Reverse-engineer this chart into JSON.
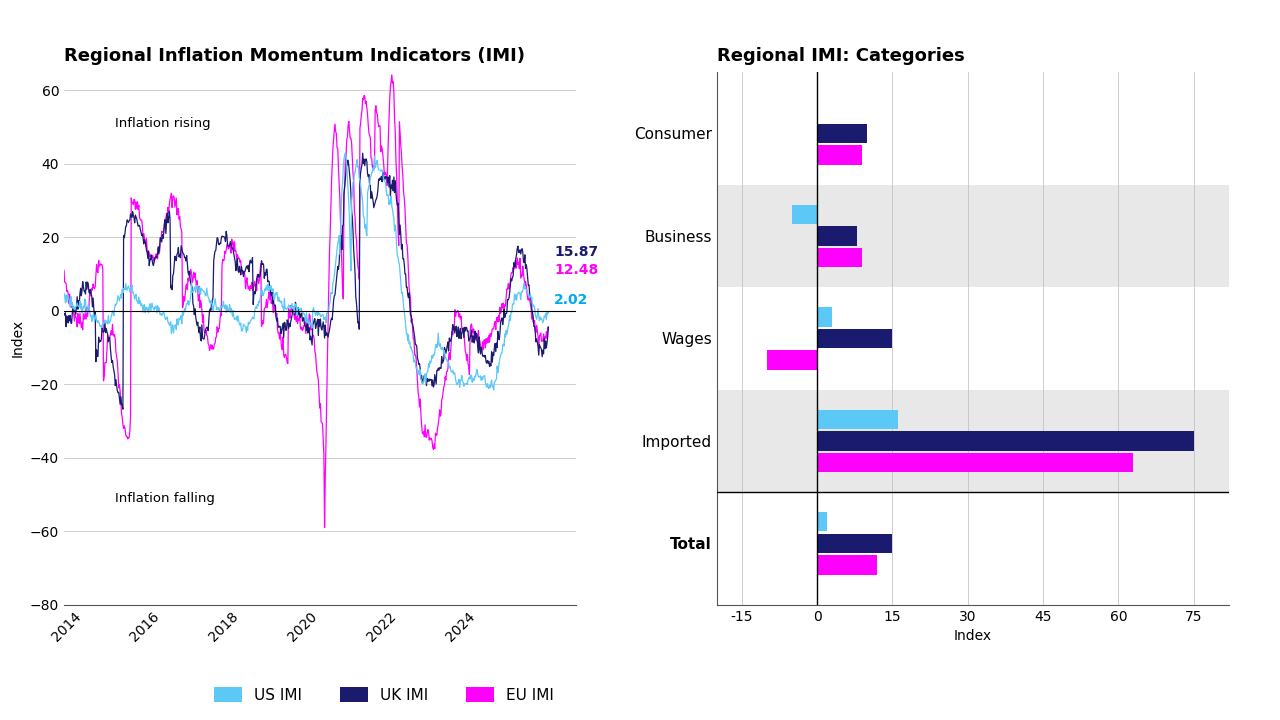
{
  "left_title": "Regional Inflation Momentum Indicators (IMI)",
  "right_title": "Regional IMI: Categories",
  "left_ylabel": "Index",
  "right_xlabel": "Index",
  "left_ylim": [
    -80,
    65
  ],
  "left_yticks": [
    -80,
    -60,
    -40,
    -20,
    0,
    20,
    40,
    60
  ],
  "annotation_rising": "Inflation rising",
  "annotation_falling": "Inflation falling",
  "end_values": {
    "uk": 15.87,
    "eu": 12.48,
    "us": 2.02
  },
  "end_value_colors": {
    "uk": "#1a1a6e",
    "eu": "#ff00ff",
    "us": "#00aaee"
  },
  "bar_categories": [
    "Consumer",
    "Business",
    "Wages",
    "Imported",
    "Total"
  ],
  "bar_data": {
    "US": [
      0,
      -5,
      3,
      16,
      2
    ],
    "UK": [
      10,
      8,
      15,
      75,
      15
    ],
    "EU": [
      9,
      9,
      -10,
      63,
      12
    ]
  },
  "bar_colors": {
    "US": "#5bc8f5",
    "UK": "#1a1a6e",
    "EU": "#ff00ff"
  },
  "right_xlim": [
    -20,
    82
  ],
  "right_xticks": [
    -15,
    0,
    15,
    30,
    45,
    60,
    75
  ],
  "shaded_categories": [
    "Business",
    "Imported"
  ],
  "legend_items": [
    "US IMI",
    "UK IMI",
    "EU IMI"
  ],
  "legend_colors": [
    "#5bc8f5",
    "#1a1a6e",
    "#ff00ff"
  ],
  "background_color": "#ffffff",
  "line_color_uk": "#1a1a6e",
  "line_color_eu": "#ff00ff",
  "line_color_us": "#5bc8f5"
}
